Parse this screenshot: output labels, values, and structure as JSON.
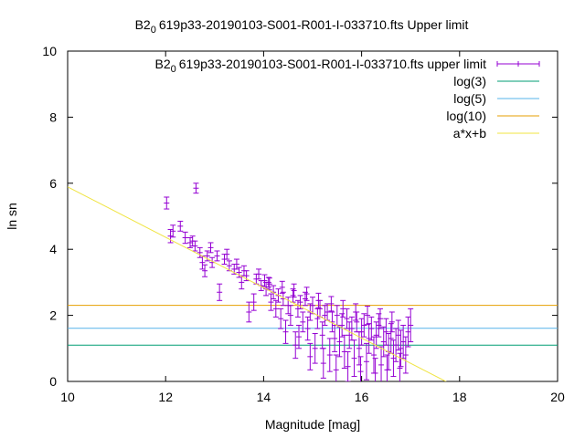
{
  "chart_data": {
    "type": "scatter",
    "title": "B2 0 619p33-20190103-S001-R001-I-033710.fts Upper limit",
    "title_parts": {
      "pre": "B2",
      "sub": "0",
      "post": "619p33-20190103-S001-R001-I-033710.fts Upper limit"
    },
    "xlabel": "Magnitude [mag]",
    "ylabel": "ln sn",
    "xlim": [
      10,
      20
    ],
    "ylim": [
      0,
      10
    ],
    "x_ticks": [
      10,
      12,
      14,
      16,
      18,
      20
    ],
    "y_ticks": [
      0,
      2,
      4,
      6,
      8,
      10
    ],
    "grid": false,
    "legend_position": "top-right",
    "legend": [
      {
        "pre": "B2",
        "sub": "0",
        "post": "619p33-20190103-S001-R001-I-033710.fts upper limit",
        "color": "#9400d3",
        "style": "errorbars"
      },
      {
        "label": "log(3)",
        "color": "#009e73",
        "style": "line"
      },
      {
        "label": "log(5)",
        "color": "#56b4e9",
        "style": "line"
      },
      {
        "label": "log(10)",
        "color": "#e69f00",
        "style": "line"
      },
      {
        "label": "a*x+b",
        "color": "#f0e442",
        "style": "line"
      }
    ],
    "hlines": [
      {
        "name": "log(3)",
        "y": 1.0986,
        "color": "#009e73"
      },
      {
        "name": "log(5)",
        "y": 1.6094,
        "color": "#56b4e9"
      },
      {
        "name": "log(10)",
        "y": 2.3026,
        "color": "#e69f00"
      }
    ],
    "fit_line": {
      "name": "a*x+b",
      "slope": -0.763,
      "intercept": 13.52,
      "color": "#f0e442"
    },
    "series": [
      {
        "color": "#9400d3",
        "points": [
          [
            12.02,
            5.4,
            0.18
          ],
          [
            12.62,
            5.85,
            0.15
          ],
          [
            12.1,
            4.4,
            0.2
          ],
          [
            12.15,
            4.55,
            0.18
          ],
          [
            12.3,
            4.7,
            0.15
          ],
          [
            12.4,
            4.35,
            0.17
          ],
          [
            12.5,
            4.2,
            0.15
          ],
          [
            12.6,
            4.1,
            0.15
          ],
          [
            12.7,
            3.9,
            0.15
          ],
          [
            12.75,
            3.6,
            0.2
          ],
          [
            12.85,
            3.8,
            0.15
          ],
          [
            12.95,
            3.6,
            0.15
          ],
          [
            13.05,
            3.8,
            0.15
          ],
          [
            13.1,
            2.7,
            0.25
          ],
          [
            13.2,
            3.7,
            0.15
          ],
          [
            13.3,
            3.5,
            0.15
          ],
          [
            13.4,
            3.4,
            0.15
          ],
          [
            13.5,
            3.3,
            0.15
          ],
          [
            13.55,
            3.0,
            0.2
          ],
          [
            13.65,
            3.2,
            0.15
          ],
          [
            13.7,
            2.1,
            0.3
          ],
          [
            13.8,
            2.4,
            0.25
          ],
          [
            13.85,
            3.1,
            0.15
          ],
          [
            13.95,
            2.9,
            0.15
          ],
          [
            14.05,
            2.8,
            0.2
          ],
          [
            14.1,
            3.0,
            0.15
          ],
          [
            14.15,
            2.4,
            0.25
          ],
          [
            14.2,
            2.7,
            0.2
          ],
          [
            14.25,
            2.2,
            0.25
          ],
          [
            14.3,
            2.6,
            0.2
          ],
          [
            14.35,
            1.9,
            0.3
          ],
          [
            14.4,
            2.5,
            0.2
          ],
          [
            14.45,
            1.5,
            0.35
          ],
          [
            14.5,
            2.3,
            0.25
          ],
          [
            14.55,
            2.0,
            0.3
          ],
          [
            14.6,
            2.6,
            0.2
          ],
          [
            14.65,
            1.1,
            0.4
          ],
          [
            14.7,
            2.2,
            0.25
          ],
          [
            14.75,
            2.4,
            0.2
          ],
          [
            14.8,
            1.8,
            0.3
          ],
          [
            14.85,
            2.5,
            0.2
          ],
          [
            14.9,
            1.6,
            0.35
          ],
          [
            14.95,
            2.1,
            0.25
          ],
          [
            15.0,
            2.3,
            0.25
          ],
          [
            15.05,
            1.0,
            0.45
          ],
          [
            15.1,
            1.9,
            0.3
          ],
          [
            15.15,
            2.2,
            0.25
          ],
          [
            15.2,
            1.4,
            0.4
          ],
          [
            15.25,
            2.0,
            0.3
          ],
          [
            15.3,
            2.1,
            0.25
          ],
          [
            15.35,
            0.8,
            0.5
          ],
          [
            15.4,
            1.8,
            0.3
          ],
          [
            15.45,
            1.3,
            0.4
          ],
          [
            15.5,
            2.0,
            0.3
          ],
          [
            15.55,
            1.2,
            0.45
          ],
          [
            15.6,
            1.7,
            0.35
          ],
          [
            15.65,
            0.9,
            0.5
          ],
          [
            15.7,
            1.9,
            0.3
          ],
          [
            15.75,
            1.4,
            0.4
          ],
          [
            15.8,
            1.6,
            0.35
          ],
          [
            15.85,
            0.7,
            0.55
          ],
          [
            15.9,
            1.8,
            0.3
          ],
          [
            15.95,
            1.0,
            0.5
          ],
          [
            16.0,
            1.5,
            0.4
          ],
          [
            16.05,
            1.7,
            0.35
          ],
          [
            16.1,
            0.6,
            0.55
          ],
          [
            16.15,
            1.3,
            0.45
          ],
          [
            16.2,
            1.6,
            0.35
          ],
          [
            16.25,
            0.8,
            0.55
          ],
          [
            16.3,
            1.4,
            0.4
          ],
          [
            16.35,
            1.7,
            0.35
          ],
          [
            16.4,
            0.5,
            0.55
          ],
          [
            16.45,
            1.2,
            0.45
          ],
          [
            16.5,
            1.5,
            0.4
          ],
          [
            16.55,
            0.9,
            0.55
          ],
          [
            16.6,
            1.3,
            0.45
          ],
          [
            16.65,
            0.7,
            0.55
          ],
          [
            16.7,
            1.1,
            0.5
          ],
          [
            16.75,
            1.4,
            0.45
          ],
          [
            16.8,
            1.0,
            0.55
          ],
          [
            16.85,
            1.2,
            0.5
          ],
          [
            16.9,
            0.8,
            0.55
          ],
          [
            16.95,
            1.5,
            0.45
          ],
          [
            17.0,
            1.7,
            0.5
          ],
          [
            14.12,
            2.95,
            0.18
          ],
          [
            14.38,
            2.85,
            0.18
          ],
          [
            14.62,
            2.75,
            0.2
          ],
          [
            14.88,
            2.65,
            0.2
          ],
          [
            15.12,
            2.45,
            0.22
          ],
          [
            15.38,
            2.35,
            0.22
          ],
          [
            15.62,
            2.2,
            0.25
          ],
          [
            15.88,
            2.1,
            0.25
          ],
          [
            16.12,
            2.0,
            0.28
          ],
          [
            16.38,
            1.9,
            0.3
          ],
          [
            16.62,
            1.8,
            0.3
          ],
          [
            15.22,
            0.55,
            0.45
          ],
          [
            15.48,
            0.35,
            0.45
          ],
          [
            15.72,
            0.45,
            0.45
          ],
          [
            15.98,
            0.3,
            0.45
          ],
          [
            16.28,
            0.25,
            0.45
          ],
          [
            16.52,
            0.35,
            0.45
          ],
          [
            16.78,
            0.4,
            0.45
          ],
          [
            14.95,
            0.75,
            0.4
          ],
          [
            14.72,
            1.35,
            0.35
          ],
          [
            13.45,
            3.55,
            0.15
          ],
          [
            13.25,
            3.85,
            0.15
          ],
          [
            12.92,
            4.05,
            0.15
          ],
          [
            12.8,
            3.35,
            0.18
          ],
          [
            12.55,
            4.25,
            0.15
          ],
          [
            13.6,
            3.35,
            0.15
          ],
          [
            13.9,
            3.25,
            0.15
          ],
          [
            14.02,
            3.05,
            0.18
          ]
        ]
      }
    ]
  }
}
